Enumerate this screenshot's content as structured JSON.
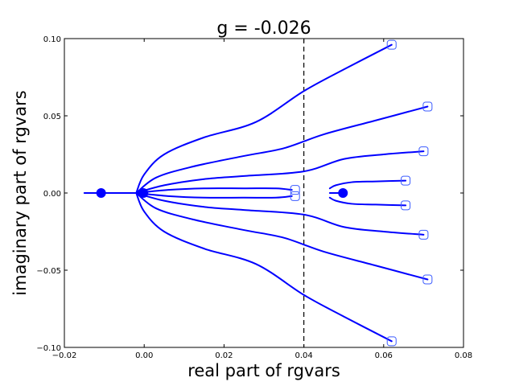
{
  "chart_data": {
    "type": "line",
    "title": "g = -0.026",
    "xlabel": "real part of rgvars",
    "ylabel": "imaginary part of rgvars",
    "xlim": [
      -0.02,
      0.08
    ],
    "ylim": [
      -0.1,
      0.1
    ],
    "xticks": [
      -0.02,
      0.0,
      0.02,
      0.04,
      0.06,
      0.08
    ],
    "yticks": [
      -0.1,
      -0.05,
      0.0,
      0.05,
      0.1
    ],
    "xtick_labels": [
      "−0.02",
      "0.00",
      "0.02",
      "0.04",
      "0.06",
      "0.08"
    ],
    "ytick_labels": [
      "−0.10",
      "−0.05",
      "0.00",
      "0.05",
      "0.10"
    ],
    "grid": false,
    "vline": {
      "x": 0.04,
      "style": "dashed",
      "color": "#000000"
    },
    "line_color": "#0000ff",
    "series": [
      {
        "x": [
          -0.002,
          0.0,
          0.005,
          0.015,
          0.028,
          0.04,
          0.05,
          0.062
        ],
        "y": [
          0.0,
          0.012,
          0.025,
          0.036,
          0.046,
          0.066,
          0.08,
          0.096
        ]
      },
      {
        "x": [
          -0.002,
          0.003,
          0.012,
          0.025,
          0.035,
          0.045,
          0.058,
          0.071
        ],
        "y": [
          0.0,
          0.01,
          0.017,
          0.024,
          0.029,
          0.038,
          0.047,
          0.056
        ]
      },
      {
        "x": [
          -0.002,
          0.005,
          0.015,
          0.025,
          0.04,
          0.05,
          0.06,
          0.07
        ],
        "y": [
          0.0,
          0.005,
          0.009,
          0.011,
          0.014,
          0.022,
          0.025,
          0.027
        ]
      },
      {
        "x": [
          -0.002,
          0.006,
          0.015,
          0.025,
          0.033,
          0.037
        ],
        "y": [
          0.0,
          0.002,
          0.003,
          0.003,
          0.003,
          0.002
        ]
      },
      {
        "x": [
          -0.002,
          0.006,
          0.015,
          0.025,
          0.033,
          0.037
        ],
        "y": [
          0.0,
          -0.002,
          -0.003,
          -0.003,
          -0.003,
          -0.002
        ]
      },
      {
        "x": [
          -0.002,
          0.005,
          0.015,
          0.025,
          0.04,
          0.05,
          0.06,
          0.07
        ],
        "y": [
          0.0,
          -0.005,
          -0.009,
          -0.011,
          -0.014,
          -0.022,
          -0.025,
          -0.027
        ]
      },
      {
        "x": [
          -0.002,
          0.003,
          0.012,
          0.025,
          0.035,
          0.045,
          0.058,
          0.071
        ],
        "y": [
          0.0,
          -0.01,
          -0.017,
          -0.024,
          -0.029,
          -0.038,
          -0.047,
          -0.056
        ]
      },
      {
        "x": [
          -0.002,
          0.0,
          0.005,
          0.015,
          0.028,
          0.04,
          0.05,
          0.062
        ],
        "y": [
          0.0,
          -0.012,
          -0.025,
          -0.036,
          -0.046,
          -0.066,
          -0.08,
          -0.096
        ]
      },
      {
        "x": [
          0.0465,
          0.048,
          0.052,
          0.058,
          0.0655
        ],
        "y": [
          0.003,
          0.005,
          0.007,
          0.0075,
          0.008
        ]
      },
      {
        "x": [
          0.0465,
          0.048,
          0.052,
          0.058,
          0.0655
        ],
        "y": [
          -0.003,
          -0.005,
          -0.007,
          -0.0075,
          -0.008
        ]
      },
      {
        "x": [
          -0.015,
          -0.011,
          -0.006,
          -0.002
        ],
        "y": [
          0.0,
          0.0,
          0.0,
          0.0
        ]
      },
      {
        "x": [
          0.0465,
          0.05
        ],
        "y": [
          0.0,
          0.0
        ]
      }
    ],
    "start_markers": {
      "shape": "circle-filled",
      "points": [
        {
          "x": -0.0108,
          "y": 0.0
        },
        {
          "x": -0.0002,
          "y": 0.0
        },
        {
          "x": 0.0498,
          "y": 0.0
        }
      ]
    },
    "end_markers": {
      "shape": "square-hollow",
      "points": [
        {
          "x": 0.062,
          "y": 0.096
        },
        {
          "x": 0.071,
          "y": 0.056
        },
        {
          "x": 0.07,
          "y": 0.027
        },
        {
          "x": 0.0655,
          "y": 0.008
        },
        {
          "x": 0.0655,
          "y": -0.008
        },
        {
          "x": 0.07,
          "y": -0.027
        },
        {
          "x": 0.071,
          "y": -0.056
        },
        {
          "x": 0.062,
          "y": -0.096
        },
        {
          "x": 0.0378,
          "y": 0.002
        },
        {
          "x": 0.0378,
          "y": -0.002
        }
      ]
    }
  }
}
